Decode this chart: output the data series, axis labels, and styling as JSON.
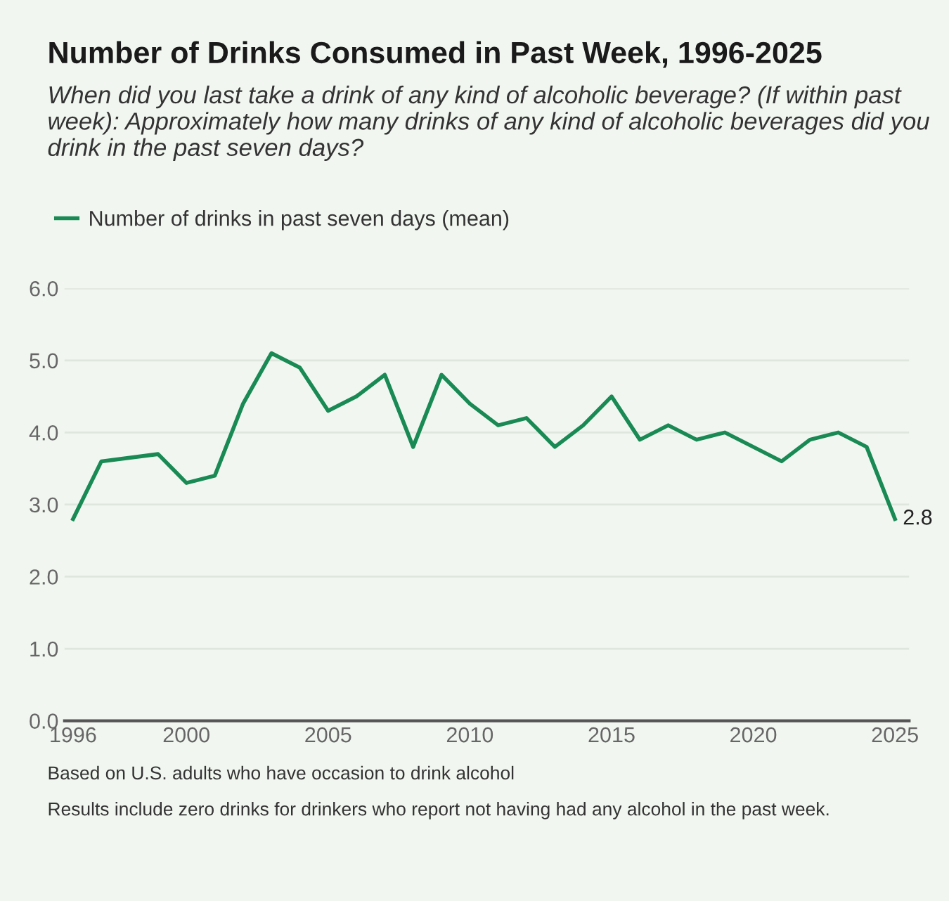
{
  "chart_data": {
    "type": "line",
    "title": "Number of Drinks Consumed in Past Week, 1996-2025",
    "subtitle": "When did you last take a drink of any kind of alcoholic beverage? (If within past week): Approximately how many drinks of any kind of alcoholic beverages did you drink in the past seven days?",
    "x": [
      1996,
      1997,
      1999,
      2000,
      2001,
      2002,
      2003,
      2004,
      2005,
      2006,
      2007,
      2008,
      2009,
      2010,
      2011,
      2012,
      2013,
      2014,
      2015,
      2016,
      2017,
      2018,
      2019,
      2021,
      2022,
      2023,
      2024,
      2025
    ],
    "series": [
      {
        "name": "Number of drinks in past seven days (mean)",
        "color": "#1a8a55",
        "values": [
          2.8,
          3.6,
          3.7,
          3.3,
          3.4,
          4.4,
          5.1,
          4.9,
          4.3,
          4.5,
          4.8,
          3.8,
          4.8,
          4.4,
          4.1,
          4.2,
          3.8,
          4.1,
          4.5,
          3.9,
          4.1,
          3.9,
          4.0,
          3.6,
          3.9,
          4.0,
          3.8,
          2.8
        ],
        "value_labels": [
          null,
          null,
          null,
          null,
          null,
          null,
          null,
          null,
          null,
          null,
          null,
          null,
          null,
          null,
          null,
          null,
          null,
          null,
          null,
          null,
          null,
          null,
          null,
          null,
          null,
          null,
          null,
          "2.8"
        ]
      }
    ],
    "xlim": [
      1995.7,
      2025.5
    ],
    "xticks": [
      1996,
      2000,
      2005,
      2010,
      2015,
      2020,
      2025
    ],
    "ylim": [
      0,
      6.0
    ],
    "yticks": [
      {
        "value": 0,
        "label": "0.0"
      },
      {
        "value": 1,
        "label": "1.0"
      },
      {
        "value": 2,
        "label": "2.0"
      },
      {
        "value": 3,
        "label": "3.0"
      },
      {
        "value": 4,
        "label": "4.0"
      },
      {
        "value": 5,
        "label": "5.0"
      },
      {
        "value": 6,
        "label": "6.0"
      }
    ],
    "grid": "y",
    "legend": "top left",
    "marker": "none",
    "line_style": "solid",
    "annotations": [
      "Based on U.S. adults who have occasion to drink alcohol",
      "Results include zero drinks for drinkers who report not having had any alcohol in the past week."
    ]
  }
}
